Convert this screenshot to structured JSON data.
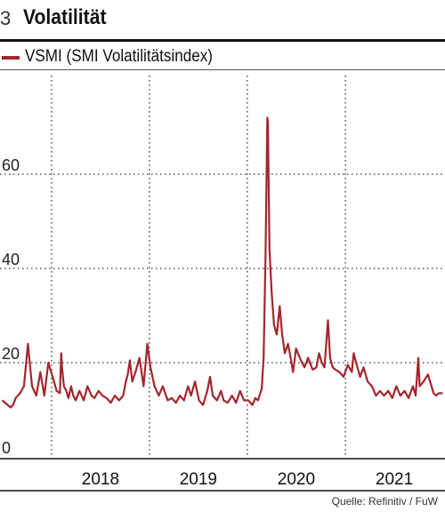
{
  "header": {
    "number": "3",
    "title": "Volatilität"
  },
  "legend": {
    "label": "VSMI (SMI Volatilitätsindex)"
  },
  "source": "Quelle: Refinitiv / FuW",
  "colors": {
    "series": "#a3262d",
    "grid": "#333333",
    "axis": "#111111"
  },
  "chart_data": {
    "type": "line",
    "title": "Volatilität",
    "xlabel": "",
    "ylabel": "",
    "ylim": [
      0,
      80
    ],
    "yticks": [
      0,
      20,
      40,
      60
    ],
    "xticks": [
      "2018",
      "2019",
      "2020",
      "2021"
    ],
    "grid": true,
    "legend_position": "top-left",
    "series": [
      {
        "name": "VSMI (SMI Volatilitätsindex)",
        "x": [
          "2017-07-01",
          "2017-08-01",
          "2017-08-10",
          "2017-08-20",
          "2017-09-05",
          "2017-09-20",
          "2017-10-05",
          "2017-10-20",
          "2017-11-05",
          "2017-11-20",
          "2017-12-05",
          "2017-12-20",
          "2018-01-05",
          "2018-01-20",
          "2018-02-01",
          "2018-02-06",
          "2018-02-09",
          "2018-02-16",
          "2018-02-25",
          "2018-03-05",
          "2018-03-15",
          "2018-03-23",
          "2018-04-01",
          "2018-04-15",
          "2018-05-01",
          "2018-05-15",
          "2018-05-30",
          "2018-06-10",
          "2018-06-25",
          "2018-07-10",
          "2018-07-25",
          "2018-08-10",
          "2018-08-25",
          "2018-09-10",
          "2018-09-25",
          "2018-10-05",
          "2018-10-12",
          "2018-10-20",
          "2018-10-29",
          "2018-11-10",
          "2018-11-25",
          "2018-12-10",
          "2018-12-18",
          "2018-12-24",
          "2019-01-05",
          "2019-01-20",
          "2019-02-05",
          "2019-02-20",
          "2019-03-10",
          "2019-03-25",
          "2019-04-10",
          "2019-04-25",
          "2019-05-10",
          "2019-05-25",
          "2019-06-05",
          "2019-06-20",
          "2019-07-05",
          "2019-07-20",
          "2019-08-05",
          "2019-08-15",
          "2019-08-25",
          "2019-09-10",
          "2019-09-25",
          "2019-10-05",
          "2019-10-20",
          "2019-11-05",
          "2019-11-20",
          "2019-12-05",
          "2019-12-20",
          "2020-01-05",
          "2020-01-20",
          "2020-01-31",
          "2020-02-10",
          "2020-02-24",
          "2020-03-02",
          "2020-03-09",
          "2020-03-12",
          "2020-03-16",
          "2020-03-18",
          "2020-03-24",
          "2020-04-01",
          "2020-04-10",
          "2020-04-20",
          "2020-05-01",
          "2020-05-10",
          "2020-05-20",
          "2020-06-01",
          "2020-06-11",
          "2020-06-20",
          "2020-07-01",
          "2020-07-15",
          "2020-08-01",
          "2020-08-15",
          "2020-09-01",
          "2020-09-15",
          "2020-09-25",
          "2020-10-05",
          "2020-10-15",
          "2020-10-28",
          "2020-11-05",
          "2020-11-15",
          "2020-11-25",
          "2020-12-10",
          "2020-12-25",
          "2021-01-10",
          "2021-01-25",
          "2021-02-01",
          "2021-02-10",
          "2021-02-25",
          "2021-03-10",
          "2021-03-25",
          "2021-04-10",
          "2021-04-25",
          "2021-05-10",
          "2021-05-25",
          "2021-06-10",
          "2021-06-25",
          "2021-07-10",
          "2021-07-25",
          "2021-08-10",
          "2021-08-25",
          "2021-09-10",
          "2021-09-20",
          "2021-09-30",
          "2021-10-05",
          "2021-10-20",
          "2021-11-05",
          "2021-11-26",
          "2021-12-05",
          "2021-12-15",
          "2021-12-30"
        ],
        "values": [
          12,
          10.5,
          11,
          12.5,
          13.5,
          15,
          24,
          15,
          13,
          18,
          13,
          20,
          17,
          14,
          13.5,
          22,
          19,
          15,
          14,
          12.5,
          15,
          13,
          12,
          14,
          12,
          15,
          13,
          12.5,
          14,
          13,
          12.5,
          11.5,
          13,
          12,
          13,
          16,
          17.5,
          20.5,
          16,
          18,
          21,
          15,
          20,
          24,
          19,
          15,
          13,
          15,
          12,
          12.5,
          11.5,
          13,
          12,
          15,
          13,
          16,
          12,
          11,
          14,
          17,
          13,
          12,
          14,
          12,
          11.5,
          13,
          11.5,
          14,
          12,
          12,
          11,
          12.5,
          12,
          14.5,
          21,
          42,
          55,
          72,
          71,
          44,
          35,
          28,
          26,
          32,
          26,
          22,
          24,
          21,
          18,
          23,
          21,
          19,
          21,
          18.5,
          19,
          22,
          20,
          19,
          29,
          21,
          19,
          18.5,
          18,
          17,
          19.5,
          18,
          22,
          20,
          17,
          19,
          16,
          15,
          13,
          14,
          13,
          14,
          12.5,
          15,
          13,
          14,
          12.5,
          15,
          13,
          21,
          15,
          16,
          17.5,
          13.5,
          13,
          13.5,
          13.5
        ]
      }
    ]
  }
}
